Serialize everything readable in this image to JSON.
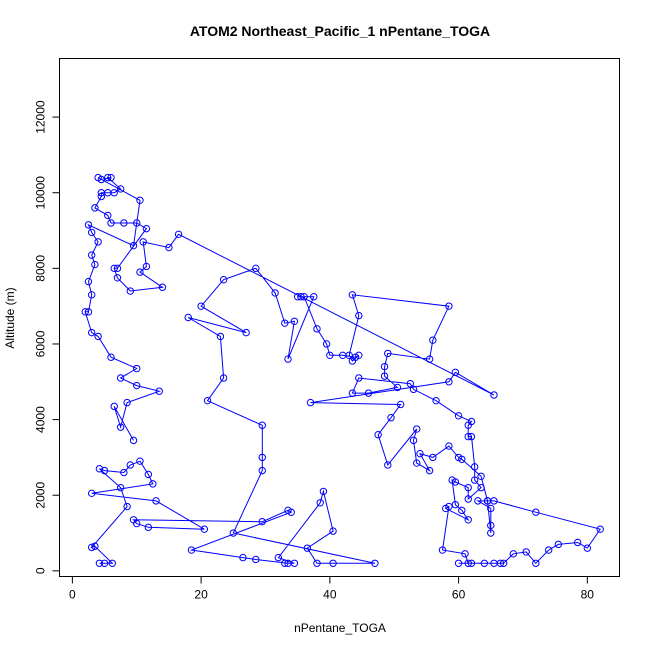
{
  "chart_data": {
    "type": "scatter",
    "title": "ATOM2 Northeast_Pacific_1 nPentane_TOGA",
    "xlabel": "nPentane_TOGA",
    "ylabel": "Altitude (m)",
    "xlim": [
      -2,
      85
    ],
    "ylim": [
      -150,
      13550
    ],
    "xticks": [
      0,
      20,
      40,
      60,
      80
    ],
    "yticks": [
      0,
      2000,
      4000,
      6000,
      8000,
      10000,
      12000
    ],
    "grid": false,
    "legend": "none",
    "color": "#0000ff",
    "series": [
      {
        "points": [
          [
            4.2,
            200
          ],
          [
            5.0,
            200
          ],
          [
            6.2,
            200
          ],
          [
            3.5,
            650
          ],
          [
            3.0,
            620
          ],
          [
            8.5,
            1700
          ],
          [
            7.5,
            2200
          ],
          [
            4.2,
            2700
          ],
          [
            5.0,
            2650
          ],
          [
            8.0,
            2600
          ],
          [
            9.0,
            2800
          ],
          [
            10.5,
            2900
          ],
          [
            11.8,
            2550
          ],
          [
            12.5,
            2300
          ],
          [
            3.0,
            2050
          ],
          [
            13.0,
            1850
          ],
          [
            20.5,
            1100
          ],
          [
            11.8,
            1150
          ],
          [
            10.0,
            1250
          ],
          [
            9.5,
            1350
          ],
          [
            29.5,
            1300
          ],
          [
            33.5,
            1600
          ],
          [
            34.0,
            1550
          ],
          [
            18.5,
            550
          ],
          [
            26.5,
            350
          ],
          [
            28.5,
            300
          ],
          [
            33.5,
            200
          ],
          [
            33.0,
            200
          ],
          [
            34.5,
            200
          ],
          [
            32.0,
            350
          ],
          [
            38.5,
            1800
          ],
          [
            39.0,
            2100
          ],
          [
            40.5,
            1050
          ],
          [
            36.5,
            600
          ],
          [
            38.0,
            200
          ],
          [
            40.5,
            200
          ],
          [
            47.0,
            200
          ],
          [
            25.0,
            1000
          ],
          [
            29.5,
            2650
          ],
          [
            29.5,
            3000
          ],
          [
            29.5,
            3850
          ],
          [
            21.0,
            4500
          ],
          [
            23.5,
            5100
          ],
          [
            23.0,
            6200
          ],
          [
            18.0,
            6700
          ],
          [
            27.0,
            6300
          ],
          [
            20.0,
            7000
          ],
          [
            23.5,
            7700
          ],
          [
            28.5,
            8000
          ],
          [
            31.5,
            7350
          ],
          [
            33.0,
            6550
          ],
          [
            34.5,
            6600
          ],
          [
            33.5,
            5600
          ],
          [
            37.5,
            7250
          ],
          [
            35.0,
            7250
          ],
          [
            35.5,
            7250
          ],
          [
            36.0,
            7250
          ],
          [
            38.0,
            6400
          ],
          [
            39.5,
            6000
          ],
          [
            40.0,
            5700
          ],
          [
            42.0,
            5700
          ],
          [
            44.0,
            5650
          ],
          [
            44.5,
            5700
          ],
          [
            43.5,
            5550
          ],
          [
            43.0,
            5700
          ],
          [
            44.5,
            6750
          ],
          [
            43.5,
            7300
          ],
          [
            58.5,
            7000
          ],
          [
            56.0,
            6100
          ],
          [
            55.5,
            5600
          ],
          [
            49.0,
            5750
          ],
          [
            48.5,
            5400
          ],
          [
            48.5,
            5150
          ],
          [
            50.5,
            4850
          ],
          [
            46.0,
            4700
          ],
          [
            43.5,
            4700
          ],
          [
            44.5,
            5100
          ],
          [
            52.5,
            4950
          ],
          [
            53.0,
            4800
          ],
          [
            56.5,
            4500
          ],
          [
            60.0,
            4100
          ],
          [
            62.0,
            3950
          ],
          [
            61.5,
            3850
          ],
          [
            61.5,
            3550
          ],
          [
            62.0,
            3550
          ],
          [
            62.5,
            2750
          ],
          [
            62.5,
            2400
          ],
          [
            63.5,
            2200
          ],
          [
            61.5,
            1900
          ],
          [
            61.5,
            2200
          ],
          [
            59.5,
            2350
          ],
          [
            59.0,
            2400
          ],
          [
            59.5,
            1750
          ],
          [
            60.5,
            1600
          ],
          [
            61.5,
            1350
          ],
          [
            58.0,
            1650
          ],
          [
            58.5,
            1700
          ],
          [
            57.5,
            550
          ],
          [
            61.0,
            450
          ],
          [
            61.5,
            200
          ],
          [
            60.0,
            200
          ],
          [
            62.0,
            200
          ],
          [
            64.0,
            200
          ],
          [
            65.5,
            200
          ],
          [
            66.5,
            200
          ],
          [
            67.0,
            200
          ],
          [
            68.5,
            450
          ],
          [
            70.5,
            500
          ],
          [
            72.0,
            200
          ],
          [
            74.0,
            550
          ],
          [
            75.5,
            700
          ],
          [
            78.5,
            750
          ],
          [
            80.0,
            600
          ],
          [
            82.0,
            1100
          ],
          [
            72.0,
            1550
          ],
          [
            65.5,
            1850
          ],
          [
            64.5,
            1850
          ],
          [
            63.0,
            1850
          ],
          [
            65.0,
            1650
          ],
          [
            65.0,
            1200
          ],
          [
            65.0,
            1000
          ],
          [
            64.5,
            1850
          ],
          [
            63.5,
            2500
          ],
          [
            60.5,
            2950
          ],
          [
            60.0,
            3000
          ],
          [
            58.5,
            3300
          ],
          [
            56.0,
            3000
          ],
          [
            54.0,
            3100
          ],
          [
            55.5,
            2650
          ],
          [
            53.5,
            2850
          ],
          [
            53.0,
            3450
          ],
          [
            53.5,
            3750
          ],
          [
            49.0,
            2800
          ],
          [
            47.5,
            3600
          ],
          [
            49.5,
            4050
          ],
          [
            51.0,
            4400
          ],
          [
            37.0,
            4450
          ],
          [
            58.5,
            5000
          ],
          [
            59.5,
            5250
          ],
          [
            65.5,
            4650
          ],
          [
            16.5,
            8900
          ],
          [
            15.0,
            8550
          ],
          [
            11.0,
            8700
          ],
          [
            11.5,
            8050
          ],
          [
            10.5,
            7900
          ],
          [
            14.0,
            7500
          ],
          [
            9.0,
            7400
          ],
          [
            7.0,
            7750
          ],
          [
            6.5,
            8000
          ],
          [
            7.0,
            8000
          ],
          [
            11.5,
            9050
          ],
          [
            10.0,
            9200
          ],
          [
            8.0,
            9200
          ],
          [
            6.0,
            9200
          ],
          [
            5.5,
            9400
          ],
          [
            3.5,
            9600
          ],
          [
            4.5,
            9900
          ],
          [
            4.5,
            10000
          ],
          [
            5.5,
            10000
          ],
          [
            6.5,
            10000
          ],
          [
            7.5,
            10100
          ],
          [
            5.5,
            10400
          ],
          [
            6.0,
            10400
          ],
          [
            4.5,
            10350
          ],
          [
            4.0,
            10400
          ],
          [
            10.5,
            9800
          ],
          [
            9.5,
            8600
          ],
          [
            2.5,
            9150
          ],
          [
            3.0,
            8950
          ],
          [
            4.0,
            8700
          ],
          [
            3.0,
            8350
          ],
          [
            3.5,
            8100
          ],
          [
            2.5,
            7650
          ],
          [
            3.0,
            7300
          ],
          [
            2.5,
            6850
          ],
          [
            2.0,
            6850
          ],
          [
            3.0,
            6300
          ],
          [
            4.0,
            6200
          ],
          [
            6.0,
            5650
          ],
          [
            10.0,
            5350
          ],
          [
            7.5,
            5100
          ],
          [
            10.0,
            4900
          ],
          [
            13.5,
            4750
          ],
          [
            8.5,
            4450
          ],
          [
            7.5,
            3800
          ],
          [
            6.5,
            4350
          ],
          [
            9.5,
            3450
          ]
        ]
      }
    ]
  }
}
